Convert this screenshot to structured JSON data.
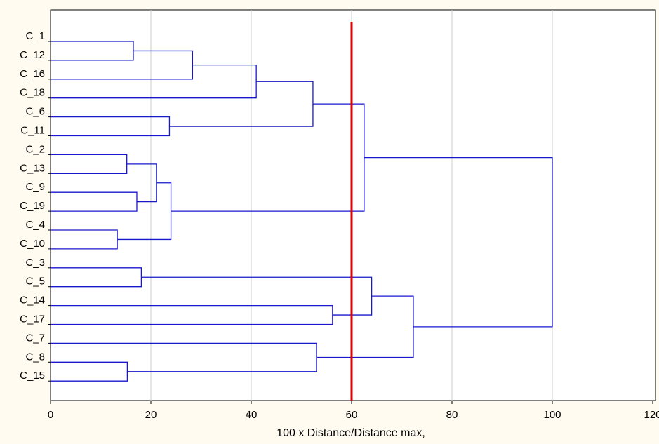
{
  "chart_data": {
    "type": "dendrogram",
    "orientation": "horizontal",
    "xlabel": "100 x Distance/Distance max,",
    "xlim": [
      0,
      120
    ],
    "x_ticks": [
      0,
      20,
      40,
      60,
      80,
      100,
      120
    ],
    "x_tick_labels": [
      "0",
      "20",
      "40",
      "60",
      "80",
      "100",
      "120"
    ],
    "grid": "vertical",
    "leaves": [
      "C_1",
      "C_12",
      "C_16",
      "C_18",
      "C_6",
      "C_11",
      "C_2",
      "C_13",
      "C_9",
      "C_19",
      "C_4",
      "C_10",
      "C_3",
      "C_5",
      "C_14",
      "C_17",
      "C_7",
      "C_8",
      "C_15"
    ],
    "merges": [
      {
        "id": "m1",
        "children": [
          "C_1",
          "C_12"
        ],
        "height": 16.5
      },
      {
        "id": "m2",
        "children": [
          "m1",
          "C_16"
        ],
        "height": 28.3
      },
      {
        "id": "m3",
        "children": [
          "m2",
          "C_18"
        ],
        "height": 41
      },
      {
        "id": "m4",
        "children": [
          "C_6",
          "C_11"
        ],
        "height": 23.7
      },
      {
        "id": "m5",
        "children": [
          "m3",
          "m4"
        ],
        "height": 52.3
      },
      {
        "id": "m6",
        "children": [
          "C_2",
          "C_13"
        ],
        "height": 15.2
      },
      {
        "id": "m7",
        "children": [
          "C_9",
          "C_19"
        ],
        "height": 17.2
      },
      {
        "id": "m8",
        "children": [
          "m6",
          "m7"
        ],
        "height": 21.1
      },
      {
        "id": "m9",
        "children": [
          "C_4",
          "C_10"
        ],
        "height": 13.3
      },
      {
        "id": "m10",
        "children": [
          "m8",
          "m9"
        ],
        "height": 24
      },
      {
        "id": "m11",
        "children": [
          "m5",
          "m10"
        ],
        "height": 62.5
      },
      {
        "id": "m12",
        "children": [
          "C_3",
          "C_5"
        ],
        "height": 18.1
      },
      {
        "id": "m13",
        "children": [
          "C_14",
          "C_17"
        ],
        "height": 56.2
      },
      {
        "id": "m14",
        "children": [
          "m12",
          "m13"
        ],
        "height": 64
      },
      {
        "id": "m15",
        "children": [
          "C_8",
          "C_15"
        ],
        "height": 15.3
      },
      {
        "id": "m16",
        "children": [
          "C_7",
          "m15"
        ],
        "height": 53
      },
      {
        "id": "m17",
        "children": [
          "m14",
          "m16"
        ],
        "height": 72.3
      },
      {
        "id": "m18",
        "children": [
          "m11",
          "m17"
        ],
        "height": 100
      }
    ],
    "cutoff_line": {
      "x": 60,
      "color": "#e00000"
    },
    "line_color": "#1818cc",
    "grid_color": "#cccccc"
  }
}
